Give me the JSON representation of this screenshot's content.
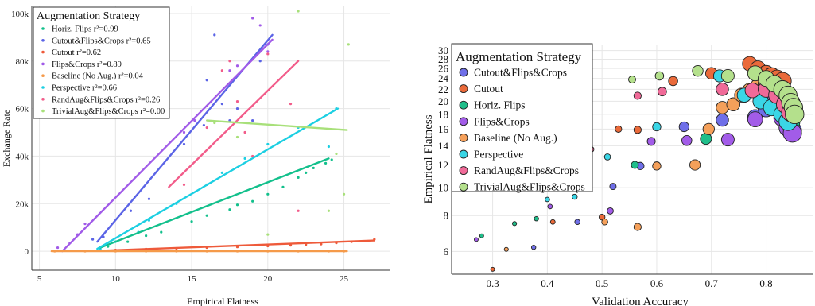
{
  "chart_data": [
    {
      "type": "scatter",
      "xlabel": "Empirical Flatness",
      "ylabel": "Exchange Rate",
      "xlim": [
        4.5,
        28
      ],
      "ylim": [
        -8000,
        103000
      ],
      "xticks": [
        5,
        10,
        15,
        20,
        25
      ],
      "yticks": [
        0,
        20000,
        40000,
        60000,
        80000,
        100000
      ],
      "ytick_labels": [
        "0",
        "20k",
        "40k",
        "60k",
        "80k",
        "100k"
      ],
      "grid": true,
      "legend_placement": "top-left",
      "legend_title": "Augmentation Strategy",
      "series": [
        {
          "name": "Horiz. Flips",
          "label": "Horiz. Flips r²=0.99",
          "color": "#13c08c",
          "fit": [
            [
              9,
              1500
            ],
            [
              24,
              39000
            ]
          ],
          "points": [
            [
              9.5,
              2000
            ],
            [
              10.8,
              4000
            ],
            [
              12,
              6500
            ],
            [
              13,
              8000
            ],
            [
              15,
              12500
            ],
            [
              16,
              15000
            ],
            [
              17.5,
              17500
            ],
            [
              18,
              19500
            ],
            [
              19,
              21000
            ],
            [
              20,
              24000
            ],
            [
              21,
              27000
            ],
            [
              22,
              31000
            ],
            [
              22.5,
              33000
            ],
            [
              23,
              35000
            ],
            [
              23.8,
              37000
            ],
            [
              24.2,
              38500
            ]
          ]
        },
        {
          "name": "Cutout&Flips&Crops",
          "label": "Cutout&Flips&Crops r²=0.65",
          "color": "#5b64e6",
          "fit": [
            [
              8.8,
              4000
            ],
            [
              20.3,
              91000
            ]
          ],
          "points": [
            [
              8.5,
              5000
            ],
            [
              9.2,
              6000
            ],
            [
              11,
              17000
            ],
            [
              12.2,
              22000
            ],
            [
              14.5,
              45000
            ],
            [
              15.8,
              53000
            ],
            [
              16,
              72000
            ],
            [
              16.5,
              91000
            ],
            [
              17,
              62000
            ],
            [
              17.5,
              55000
            ],
            [
              18,
              60000
            ],
            [
              19,
              55000
            ],
            [
              19.5,
              80000
            ],
            [
              20,
              87000
            ]
          ]
        },
        {
          "name": "Cutout",
          "label": "Cutout r²=0.62",
          "color": "#ee5a3a",
          "fit": [
            [
              9,
              200
            ],
            [
              27,
              4500
            ]
          ],
          "points": [
            [
              10,
              500
            ],
            [
              12,
              900
            ],
            [
              14,
              1200
            ],
            [
              16,
              1500
            ],
            [
              18,
              1800
            ],
            [
              20,
              2200
            ],
            [
              21.5,
              2500
            ],
            [
              22.5,
              2800
            ],
            [
              23.5,
              3000
            ],
            [
              24.5,
              3500
            ],
            [
              25.5,
              4000
            ],
            [
              27,
              5000
            ]
          ]
        },
        {
          "name": "Flips&Crops",
          "label": "Flips&Crops r²=0.89",
          "color": "#a15be8",
          "fit": [
            [
              6.5,
              0
            ],
            [
              20.3,
              89000
            ]
          ],
          "points": [
            [
              6.2,
              1500
            ],
            [
              7,
              3500
            ],
            [
              7.5,
              7000
            ],
            [
              8,
              11500
            ],
            [
              14.5,
              50000
            ],
            [
              15.2,
              55000
            ],
            [
              17.5,
              76000
            ],
            [
              18,
              78000
            ],
            [
              19,
              98000
            ],
            [
              19.5,
              95000
            ],
            [
              20,
              84000
            ]
          ]
        },
        {
          "name": "Baseline (No Aug.)",
          "label": "Baseline (No Aug.) r²=0.04",
          "color": "#f59a4a",
          "fit": [
            [
              5.8,
              0
            ],
            [
              25.2,
              0
            ]
          ],
          "points": [
            [
              6,
              0
            ],
            [
              8,
              0
            ],
            [
              10,
              0
            ],
            [
              12,
              0
            ],
            [
              14,
              0
            ],
            [
              16,
              0
            ],
            [
              18,
              0
            ],
            [
              20,
              0
            ],
            [
              22,
              0
            ],
            [
              24,
              0
            ],
            [
              25,
              0
            ]
          ]
        },
        {
          "name": "Perspective",
          "label": "Perspective r²=0.66",
          "color": "#1ccfe2",
          "fit": [
            [
              8.8,
              1000
            ],
            [
              24.6,
              60000
            ]
          ],
          "points": [
            [
              9,
              1000
            ],
            [
              10,
              4000
            ],
            [
              11.5,
              8000
            ],
            [
              12.2,
              13000
            ],
            [
              14,
              20000
            ],
            [
              16,
              28000
            ],
            [
              17,
              33000
            ],
            [
              18.5,
              39000
            ],
            [
              20,
              45000
            ],
            [
              22,
              52000
            ],
            [
              24,
              44000
            ],
            [
              24.5,
              60000
            ]
          ]
        },
        {
          "name": "RandAug&Flips&Crops",
          "label": "RandAug&Flips&Crops r²=0.26",
          "color": "#f25c8a",
          "fit": [
            [
              13.5,
              27000
            ],
            [
              22,
              80000
            ]
          ],
          "points": [
            [
              14.5,
              28000
            ],
            [
              16,
              52000
            ],
            [
              17,
              76000
            ],
            [
              17.5,
              80000
            ],
            [
              18,
              63000
            ],
            [
              18.5,
              50000
            ],
            [
              19,
              40000
            ],
            [
              20,
              83000
            ],
            [
              21.5,
              62000
            ],
            [
              22,
              17000
            ]
          ]
        },
        {
          "name": "TrivialAug&Flips&Crops",
          "label": "TrivialAug&Flips&Crops r²=0.00",
          "color": "#a8e07a",
          "fit": [
            [
              16,
              55000
            ],
            [
              25.2,
              51000
            ]
          ],
          "points": [
            [
              16.5,
              54000
            ],
            [
              18,
              48000
            ],
            [
              20,
              7000
            ],
            [
              22,
              101000
            ],
            [
              24,
              17000
            ],
            [
              24.5,
              41000
            ],
            [
              25,
              24000
            ],
            [
              25.3,
              87000
            ]
          ]
        }
      ]
    },
    {
      "type": "scatter",
      "xlabel": "Validation Accuracy",
      "ylabel": "Empirical Flatness",
      "xlim": [
        0.225,
        0.885
      ],
      "ylim": [
        5.0,
        31.5
      ],
      "yscale": "log",
      "xticks": [
        0.3,
        0.4,
        0.5,
        0.6,
        0.7,
        0.8
      ],
      "xtick_labels": [
        "0.3",
        "0.4",
        "0.5",
        "0.6",
        "0.7",
        "0.8"
      ],
      "yticks": [
        6,
        8,
        10,
        12,
        14,
        16,
        18,
        20,
        22,
        24,
        26,
        28,
        30
      ],
      "grid": true,
      "legend_placement": "top-left",
      "legend_title": "Augmentation Strategy",
      "series": [
        {
          "name": "Cutout&Flips&Crops",
          "color": "#6f6fe8",
          "points": [
            [
              0.375,
              6.2
            ],
            [
              0.455,
              7.6
            ],
            [
              0.52,
              10.1
            ],
            [
              0.57,
              11.9
            ],
            [
              0.65,
              16.3
            ],
            [
              0.72,
              17.2
            ],
            [
              0.78,
              17.6
            ],
            [
              0.8,
              18.8
            ],
            [
              0.815,
              20
            ],
            [
              0.83,
              19.2
            ],
            [
              0.84,
              18.8
            ],
            [
              0.845,
              17.5
            ],
            [
              0.848,
              15.8
            ]
          ]
        },
        {
          "name": "Cutout",
          "color": "#ea6a3a",
          "points": [
            [
              0.3,
              5.2
            ],
            [
              0.41,
              7.6
            ],
            [
              0.5,
              7.9
            ],
            [
              0.53,
              16
            ],
            [
              0.565,
              15.9
            ],
            [
              0.63,
              23.5
            ],
            [
              0.7,
              25
            ],
            [
              0.77,
              27
            ],
            [
              0.785,
              26
            ],
            [
              0.8,
              25
            ],
            [
              0.81,
              24.5
            ],
            [
              0.82,
              24
            ],
            [
              0.83,
              23.5
            ]
          ]
        },
        {
          "name": "Horiz. Flips",
          "color": "#1fbe8a",
          "points": [
            [
              0.28,
              6.8
            ],
            [
              0.34,
              7.5
            ],
            [
              0.38,
              7.8
            ],
            [
              0.56,
              12
            ],
            [
              0.69,
              14.8
            ],
            [
              0.76,
              21
            ],
            [
              0.8,
              22
            ],
            [
              0.82,
              21.5
            ],
            [
              0.83,
              20
            ],
            [
              0.84,
              18
            ],
            [
              0.845,
              17
            ]
          ]
        },
        {
          "name": "Flips&Crops",
          "color": "#a25ce8",
          "points": [
            [
              0.27,
              6.6
            ],
            [
              0.405,
              8.6
            ],
            [
              0.515,
              8.3
            ],
            [
              0.59,
              14.5
            ],
            [
              0.655,
              14.6
            ],
            [
              0.73,
              14.7
            ],
            [
              0.78,
              17.3
            ],
            [
              0.8,
              20
            ],
            [
              0.83,
              17.5
            ],
            [
              0.84,
              16.2
            ],
            [
              0.848,
              15.5
            ]
          ]
        },
        {
          "name": "Baseline (No Aug.)",
          "color": "#f5a05a",
          "points": [
            [
              0.325,
              6.1
            ],
            [
              0.505,
              7.6
            ],
            [
              0.565,
              7.3
            ],
            [
              0.6,
              11.9
            ],
            [
              0.67,
              12
            ],
            [
              0.695,
              16
            ],
            [
              0.72,
              19
            ],
            [
              0.74,
              19.5
            ],
            [
              0.755,
              21
            ],
            [
              0.77,
              21.8
            ],
            [
              0.785,
              22.5
            ],
            [
              0.8,
              23
            ],
            [
              0.81,
              22.8
            ],
            [
              0.825,
              21.5
            ]
          ]
        },
        {
          "name": "Perspective",
          "color": "#3ad6e6",
          "points": [
            [
              0.4,
              9.1
            ],
            [
              0.45,
              9.3
            ],
            [
              0.51,
              12.8
            ],
            [
              0.6,
              16.3
            ],
            [
              0.715,
              24.5
            ],
            [
              0.76,
              21
            ],
            [
              0.79,
              20
            ],
            [
              0.81,
              19
            ],
            [
              0.83,
              18
            ],
            [
              0.84,
              17
            ]
          ]
        },
        {
          "name": "RandAug&Flips&Crops",
          "color": "#f06a98",
          "points": [
            [
              0.48,
              13.6
            ],
            [
              0.565,
              20.9
            ],
            [
              0.61,
              21.6
            ],
            [
              0.72,
              22
            ],
            [
              0.775,
              21.8
            ],
            [
              0.8,
              22
            ],
            [
              0.82,
              21
            ],
            [
              0.835,
              19.5
            ],
            [
              0.845,
              18.3
            ]
          ]
        },
        {
          "name": "TrivialAug&Flips&Crops",
          "color": "#b4e08c",
          "points": [
            [
              0.555,
              23.8
            ],
            [
              0.605,
              24.5
            ],
            [
              0.675,
              25.5
            ],
            [
              0.73,
              24.5
            ],
            [
              0.78,
              25
            ],
            [
              0.8,
              24
            ],
            [
              0.815,
              23
            ],
            [
              0.83,
              22
            ],
            [
              0.84,
              21
            ],
            [
              0.845,
              19.8
            ],
            [
              0.85,
              19
            ],
            [
              0.852,
              18
            ]
          ]
        }
      ]
    }
  ]
}
